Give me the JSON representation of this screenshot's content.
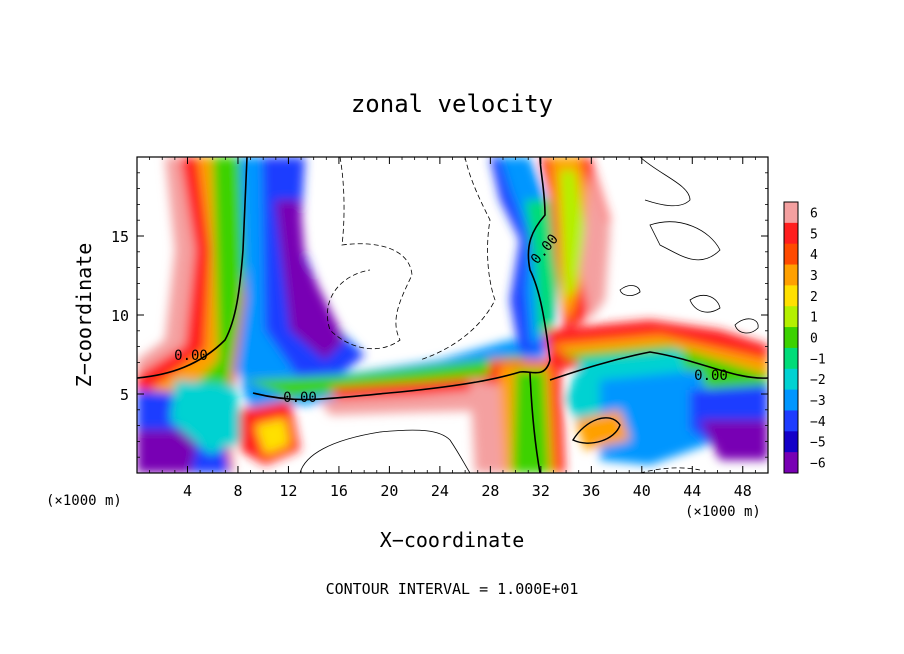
{
  "chart_data": {
    "type": "heatmap",
    "title": "zonal velocity",
    "xlabel": "X−coordinate",
    "ylabel": "Z−coordinate",
    "x_unit": "(×1000 m)",
    "y_unit": "(×1000 m)",
    "xlim": [
      0,
      50
    ],
    "ylim": [
      0,
      20
    ],
    "x_ticks": [
      4,
      8,
      12,
      16,
      20,
      24,
      28,
      32,
      36,
      40,
      44,
      48
    ],
    "y_ticks": [
      5,
      10,
      15
    ],
    "colorbar": {
      "levels": [
        6,
        5,
        4,
        3,
        2,
        1,
        0,
        -1,
        -2,
        -3,
        -4,
        -5,
        -6
      ],
      "labels": [
        "6",
        "5",
        "4",
        "3",
        "2",
        "1",
        "0",
        "−1",
        "−2",
        "−3",
        "−4",
        "−5",
        "−6"
      ],
      "colors": [
        "#f4a0a0",
        "#ff1e1e",
        "#ff4a00",
        "#ffa000",
        "#ffe000",
        "#b4f000",
        "#3cd200",
        "#00dc78",
        "#00d2d2",
        "#0096ff",
        "#1e3cff",
        "#1400c8",
        "#7800b4"
      ]
    },
    "contour_labels": [
      "0.00",
      "0.00",
      "0.00",
      "0.00"
    ],
    "annotation": "CONTOUR INTERVAL = 1.000E+01",
    "grid": false,
    "legend": "colorbar-right"
  }
}
